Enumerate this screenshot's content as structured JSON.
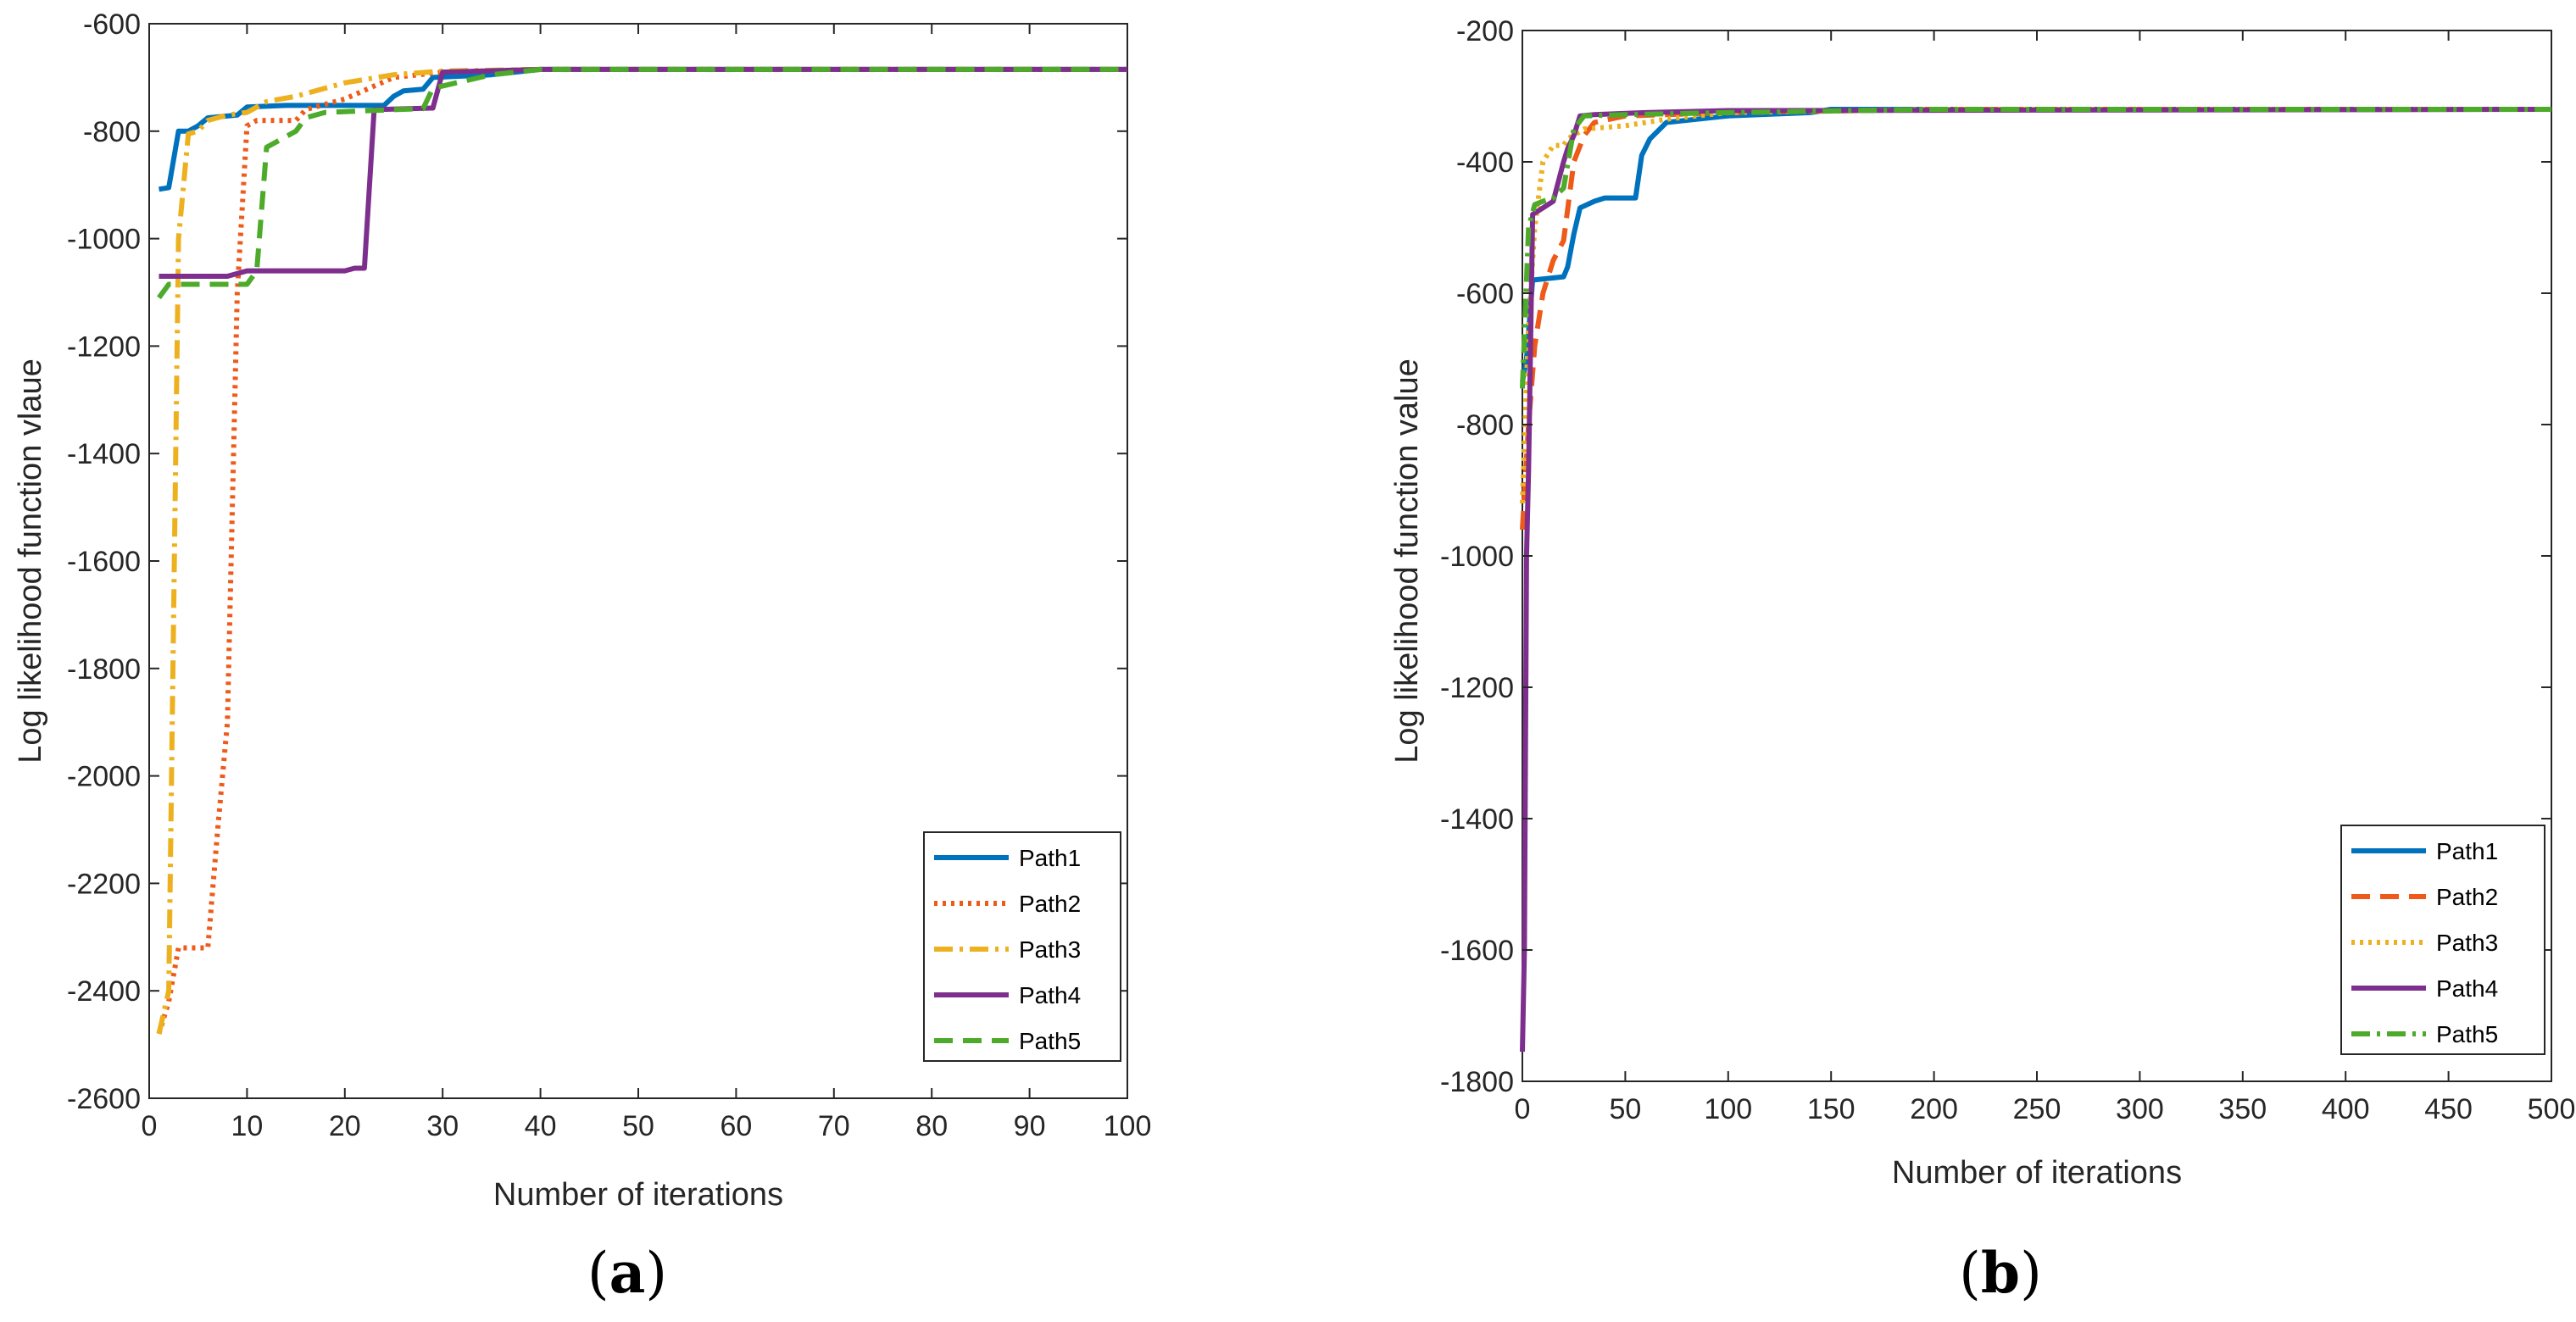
{
  "chart_data": [
    {
      "type": "line",
      "panel_label": "a",
      "title": "",
      "xlabel": "Number of iterations",
      "ylabel": "Log likelihood function vlaue",
      "xlim": [
        0,
        100
      ],
      "ylim": [
        -2600,
        -600
      ],
      "xticks": [
        0,
        10,
        20,
        30,
        40,
        50,
        60,
        70,
        80,
        90,
        100
      ],
      "yticks": [
        -2600,
        -2400,
        -2200,
        -2000,
        -1800,
        -1600,
        -1400,
        -1200,
        -1000,
        -800,
        -600
      ],
      "grid": false,
      "legend": "bottom-right",
      "series": [
        {
          "name": "Path1",
          "color": "#0072BD",
          "style": "solid",
          "points": [
            [
              1,
              -908
            ],
            [
              2,
              -905
            ],
            [
              3,
              -800
            ],
            [
              4,
              -800
            ],
            [
              5,
              -790
            ],
            [
              6,
              -775
            ],
            [
              9,
              -770
            ],
            [
              10,
              -755
            ],
            [
              14,
              -752
            ],
            [
              24,
              -752
            ],
            [
              25,
              -735
            ],
            [
              26,
              -725
            ],
            [
              28,
              -722
            ],
            [
              29,
              -700
            ],
            [
              35,
              -695
            ],
            [
              40,
              -685
            ],
            [
              100,
              -685
            ]
          ]
        },
        {
          "name": "Path2",
          "color": "#EE5A1A",
          "style": "dotted",
          "points": [
            [
              1,
              -2480
            ],
            [
              2,
              -2420
            ],
            [
              3,
              -2320
            ],
            [
              6,
              -2320
            ],
            [
              7,
              -2100
            ],
            [
              8,
              -1900
            ],
            [
              9,
              -1100
            ],
            [
              10,
              -790
            ],
            [
              11,
              -780
            ],
            [
              15,
              -780
            ],
            [
              16,
              -760
            ],
            [
              20,
              -740
            ],
            [
              25,
              -700
            ],
            [
              30,
              -690
            ],
            [
              40,
              -685
            ],
            [
              100,
              -685
            ]
          ]
        },
        {
          "name": "Path3",
          "color": "#EDB120",
          "style": "dashdot",
          "points": [
            [
              1,
              -2480
            ],
            [
              2,
              -2400
            ],
            [
              3,
              -1000
            ],
            [
              4,
              -805
            ],
            [
              5,
              -800
            ],
            [
              6,
              -780
            ],
            [
              8,
              -770
            ],
            [
              10,
              -765
            ],
            [
              12,
              -745
            ],
            [
              15,
              -735
            ],
            [
              20,
              -710
            ],
            [
              25,
              -695
            ],
            [
              30,
              -688
            ],
            [
              40,
              -685
            ],
            [
              100,
              -685
            ]
          ]
        },
        {
          "name": "Path4",
          "color": "#7E2F8E",
          "style": "solid",
          "points": [
            [
              1,
              -1070
            ],
            [
              8,
              -1070
            ],
            [
              10,
              -1060
            ],
            [
              20,
              -1060
            ],
            [
              21,
              -1055
            ],
            [
              22,
              -1055
            ],
            [
              23,
              -760
            ],
            [
              29,
              -757
            ],
            [
              30,
              -690
            ],
            [
              40,
              -685
            ],
            [
              100,
              -685
            ]
          ]
        },
        {
          "name": "Path5",
          "color": "#4DAA2A",
          "style": "dashed",
          "points": [
            [
              1,
              -1110
            ],
            [
              2,
              -1085
            ],
            [
              6,
              -1085
            ],
            [
              8,
              -1085
            ],
            [
              10,
              -1085
            ],
            [
              11,
              -1060
            ],
            [
              12,
              -830
            ],
            [
              13,
              -820
            ],
            [
              15,
              -800
            ],
            [
              16,
              -775
            ],
            [
              18,
              -765
            ],
            [
              25,
              -760
            ],
            [
              28,
              -758
            ],
            [
              29,
              -720
            ],
            [
              35,
              -695
            ],
            [
              40,
              -685
            ],
            [
              100,
              -685
            ]
          ]
        }
      ]
    },
    {
      "type": "line",
      "panel_label": "b",
      "title": "",
      "xlabel": "Number of iterations",
      "ylabel": "Log likelihood function value",
      "xlim": [
        0,
        500
      ],
      "ylim": [
        -1800,
        -200
      ],
      "xticks": [
        0,
        50,
        100,
        150,
        200,
        250,
        300,
        350,
        400,
        450,
        500
      ],
      "yticks": [
        -1800,
        -1600,
        -1400,
        -1200,
        -1000,
        -800,
        -600,
        -400,
        -200
      ],
      "grid": false,
      "legend": "bottom-right",
      "series": [
        {
          "name": "Path1",
          "color": "#0072BD",
          "style": "solid",
          "points": [
            [
              0,
              -735
            ],
            [
              2,
              -700
            ],
            [
              5,
              -580
            ],
            [
              20,
              -575
            ],
            [
              22,
              -560
            ],
            [
              25,
              -510
            ],
            [
              28,
              -470
            ],
            [
              35,
              -460
            ],
            [
              40,
              -455
            ],
            [
              55,
              -455
            ],
            [
              58,
              -390
            ],
            [
              62,
              -365
            ],
            [
              70,
              -340
            ],
            [
              100,
              -330
            ],
            [
              140,
              -325
            ],
            [
              150,
              -320
            ],
            [
              500,
              -320
            ]
          ]
        },
        {
          "name": "Path2",
          "color": "#EE5A1A",
          "style": "dashed",
          "points": [
            [
              0,
              -960
            ],
            [
              3,
              -800
            ],
            [
              6,
              -680
            ],
            [
              10,
              -600
            ],
            [
              15,
              -550
            ],
            [
              20,
              -520
            ],
            [
              25,
              -400
            ],
            [
              30,
              -360
            ],
            [
              35,
              -340
            ],
            [
              50,
              -330
            ],
            [
              100,
              -325
            ],
            [
              200,
              -320
            ],
            [
              500,
              -320
            ]
          ]
        },
        {
          "name": "Path3",
          "color": "#EDB120",
          "style": "dotted",
          "points": [
            [
              0,
              -920
            ],
            [
              3,
              -650
            ],
            [
              6,
              -500
            ],
            [
              10,
              -400
            ],
            [
              15,
              -375
            ],
            [
              20,
              -375
            ],
            [
              22,
              -365
            ],
            [
              30,
              -350
            ],
            [
              50,
              -345
            ],
            [
              70,
              -335
            ],
            [
              100,
              -325
            ],
            [
              200,
              -320
            ],
            [
              500,
              -320
            ]
          ]
        },
        {
          "name": "Path4",
          "color": "#7E2F8E",
          "style": "solid",
          "points": [
            [
              0,
              -1755
            ],
            [
              1,
              -1600
            ],
            [
              2,
              -1000
            ],
            [
              3,
              -870
            ],
            [
              5,
              -480
            ],
            [
              10,
              -470
            ],
            [
              15,
              -460
            ],
            [
              20,
              -400
            ],
            [
              22,
              -380
            ],
            [
              25,
              -360
            ],
            [
              28,
              -330
            ],
            [
              35,
              -328
            ],
            [
              60,
              -325
            ],
            [
              100,
              -322
            ],
            [
              500,
              -320
            ]
          ]
        },
        {
          "name": "Path5",
          "color": "#4DAA2A",
          "style": "dashdot",
          "points": [
            [
              0,
              -745
            ],
            [
              3,
              -500
            ],
            [
              6,
              -465
            ],
            [
              10,
              -460
            ],
            [
              15,
              -455
            ],
            [
              20,
              -440
            ],
            [
              25,
              -350
            ],
            [
              30,
              -330
            ],
            [
              50,
              -328
            ],
            [
              100,
              -325
            ],
            [
              200,
              -320
            ],
            [
              500,
              -320
            ]
          ]
        }
      ]
    }
  ]
}
